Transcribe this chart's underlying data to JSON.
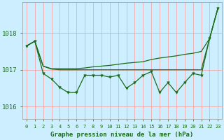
{
  "title": "Graphe pression niveau de la mer (hPa)",
  "background_color": "#cceeff",
  "grid_color_v": "#ff9999",
  "grid_color_h": "#ff9999",
  "line_color": "#1a6b1a",
  "xlim": [
    -0.5,
    23.5
  ],
  "ylim": [
    1015.65,
    1018.85
  ],
  "yticks": [
    1016,
    1017,
    1018
  ],
  "xtick_labels": [
    "0",
    "1",
    "2",
    "3",
    "4",
    "5",
    "6",
    "7",
    "8",
    "9",
    "10",
    "11",
    "12",
    "13",
    "14",
    "15",
    "16",
    "17",
    "18",
    "19",
    "20",
    "21",
    "22",
    "23"
  ],
  "series_smooth": [
    1017.65,
    1017.78,
    1017.1,
    1017.03,
    1017.03,
    1017.03,
    1017.03,
    1017.05,
    1017.08,
    1017.1,
    1017.12,
    1017.15,
    1017.18,
    1017.2,
    1017.22,
    1017.28,
    1017.32,
    1017.35,
    1017.38,
    1017.42,
    1017.45,
    1017.5,
    1017.85,
    1018.68
  ],
  "series_flat": [
    1017.65,
    1017.78,
    1017.1,
    1017.02,
    1017.0,
    1017.0,
    1017.0,
    1017.0,
    1017.0,
    1017.0,
    1017.0,
    1017.0,
    1017.0,
    1017.0,
    1017.0,
    1017.0,
    1017.0,
    1017.0,
    1017.0,
    1017.0,
    1017.0,
    1017.0,
    1017.85,
    1018.68
  ],
  "series_jagged": [
    1017.65,
    1017.78,
    1016.9,
    1016.75,
    1016.52,
    1016.38,
    1016.38,
    1016.85,
    1016.85,
    1016.85,
    1016.8,
    1016.85,
    1016.5,
    1016.65,
    1016.85,
    1016.95,
    1016.38,
    1016.65,
    1016.38,
    1016.65,
    1016.9,
    1016.85,
    1017.85,
    1018.68
  ]
}
